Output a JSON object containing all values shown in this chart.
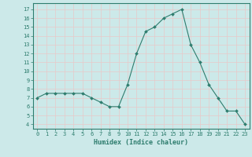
{
  "x": [
    0,
    1,
    2,
    3,
    4,
    5,
    6,
    7,
    8,
    9,
    10,
    11,
    12,
    13,
    14,
    15,
    16,
    17,
    18,
    19,
    20,
    21,
    22,
    23
  ],
  "y": [
    7,
    7.5,
    7.5,
    7.5,
    7.5,
    7.5,
    7,
    6.5,
    6,
    6,
    8.5,
    12,
    14.5,
    15,
    16,
    16.5,
    17,
    13,
    11,
    8.5,
    7,
    5.5,
    5.5,
    4
  ],
  "line_color": "#2e7d6e",
  "marker": "D",
  "marker_size": 2,
  "bg_color": "#cce9e9",
  "grid_color_major": "#e8c8c8",
  "grid_color_white": "#ffffff",
  "axis_color": "#2e7d6e",
  "xlabel": "Humidex (Indice chaleur)",
  "xlabel_fontsize": 6,
  "tick_fontsize": 5,
  "yticks": [
    4,
    5,
    6,
    7,
    8,
    9,
    10,
    11,
    12,
    13,
    14,
    15,
    16,
    17
  ],
  "xticks": [
    0,
    1,
    2,
    3,
    4,
    5,
    6,
    7,
    8,
    9,
    10,
    11,
    12,
    13,
    14,
    15,
    16,
    17,
    18,
    19,
    20,
    21,
    22,
    23
  ],
  "ylim": [
    3.5,
    17.7
  ],
  "xlim": [
    -0.5,
    23.5
  ]
}
